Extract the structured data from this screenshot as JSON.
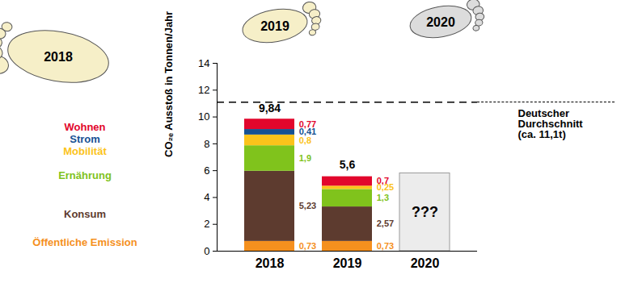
{
  "chart_data": {
    "type": "bar",
    "stacked": true,
    "data_labels": true,
    "categories": [
      "2018",
      "2019",
      "2020"
    ],
    "series": [
      {
        "name": "Öffentliche Emission",
        "color": "#f5901e",
        "values": [
          0.73,
          0.73,
          null
        ],
        "value_labels": [
          "0,73",
          "0,73",
          null
        ]
      },
      {
        "name": "Konsum",
        "color": "#5d3b2f",
        "values": [
          5.23,
          2.57,
          null
        ],
        "value_labels": [
          "5,23",
          "2,57",
          null
        ]
      },
      {
        "name": "Ernährung",
        "color": "#80c31c",
        "values": [
          1.9,
          1.3,
          null
        ],
        "value_labels": [
          "1,9",
          "1,3",
          null
        ]
      },
      {
        "name": "Mobilität",
        "color": "#fbc31b",
        "values": [
          0.8,
          0.25,
          null
        ],
        "value_labels": [
          "0,8",
          "0,25",
          null
        ]
      },
      {
        "name": "Strom",
        "color": "#155193",
        "values": [
          0.41,
          null,
          null
        ],
        "value_labels": [
          "0,41",
          null,
          null
        ]
      },
      {
        "name": "Wohnen",
        "color": "#e2062c",
        "values": [
          0.77,
          0.7,
          null
        ],
        "value_labels": [
          "0,77",
          "0,7",
          null
        ]
      }
    ],
    "totals": {
      "values": [
        9.84,
        5.6,
        null
      ],
      "value_labels": [
        "9,84",
        "5,6",
        null
      ]
    },
    "placeholder": {
      "category": "2020",
      "value": 5.8,
      "color": "#ececec",
      "label": "???"
    },
    "reference_line": {
      "value": 11.1,
      "label": "Deutscher\nDurchschnitt\n(ca. 11,1t)"
    },
    "y_label": "CO₂ₑ Ausstoß in Tonnen/Jahr",
    "ylim": [
      0,
      14
    ],
    "yticks": [
      0,
      2,
      4,
      6,
      8,
      10,
      12,
      14
    ],
    "grid": false
  }
}
